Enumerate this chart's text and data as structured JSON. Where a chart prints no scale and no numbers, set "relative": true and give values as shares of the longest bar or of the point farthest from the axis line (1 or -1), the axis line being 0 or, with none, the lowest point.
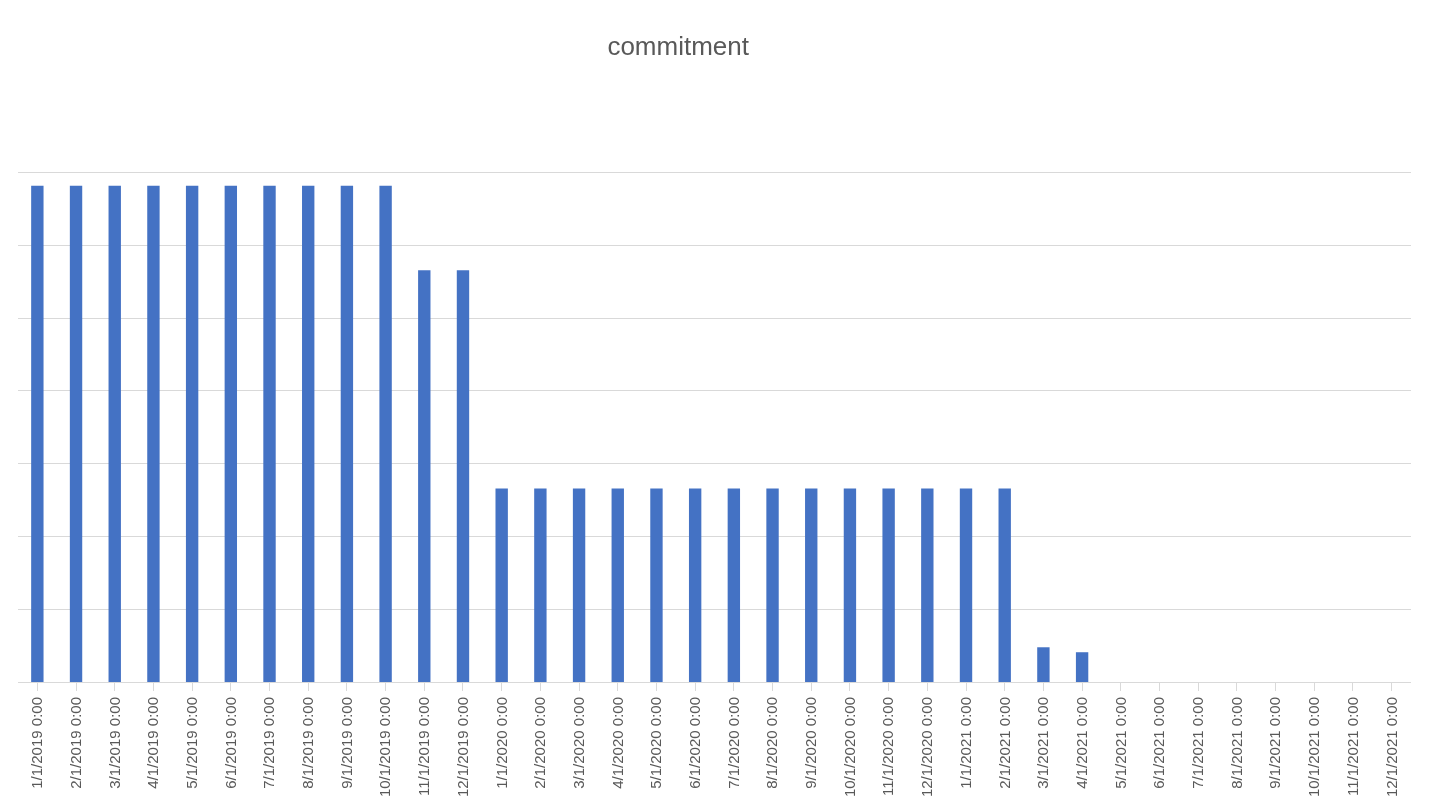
{
  "chart_data": {
    "type": "bar",
    "title": "commitment",
    "relative": true,
    "grid": true,
    "color": "#4472c4",
    "categories": [
      "1/1/2019 0:00",
      "2/1/2019 0:00",
      "3/1/2019 0:00",
      "4/1/2019 0:00",
      "5/1/2019 0:00",
      "6/1/2019 0:00",
      "7/1/2019 0:00",
      "8/1/2019 0:00",
      "9/1/2019 0:00",
      "10/1/2019 0:00",
      "11/1/2019 0:00",
      "12/1/2019 0:00",
      "1/1/2020 0:00",
      "2/1/2020 0:00",
      "3/1/2020 0:00",
      "4/1/2020 0:00",
      "5/1/2020 0:00",
      "6/1/2020 0:00",
      "7/1/2020 0:00",
      "8/1/2020 0:00",
      "9/1/2020 0:00",
      "10/1/2020 0:00",
      "11/1/2020 0:00",
      "12/1/2020 0:00",
      "1/1/2021 0:00",
      "2/1/2021 0:00",
      "3/1/2021 0:00",
      "4/1/2021 0:00",
      "5/1/2021 0:00",
      "6/1/2021 0:00",
      "7/1/2021 0:00",
      "8/1/2021 0:00",
      "9/1/2021 0:00",
      "10/1/2021 0:00",
      "11/1/2021 0:00",
      "12/1/2021 0:00"
    ],
    "values": [
      1,
      1,
      1,
      1,
      1,
      1,
      1,
      1,
      1,
      1,
      0.83,
      0.83,
      0.39,
      0.39,
      0.39,
      0.39,
      0.39,
      0.39,
      0.39,
      0.39,
      0.39,
      0.39,
      0.39,
      0.39,
      0.39,
      0.39,
      0.07,
      0.06,
      0,
      0,
      0,
      0,
      0,
      0,
      0,
      0
    ]
  }
}
